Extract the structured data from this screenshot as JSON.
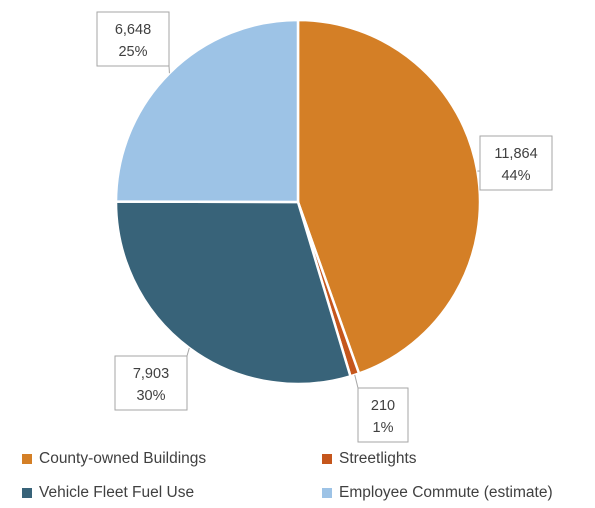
{
  "chart_data": {
    "type": "pie",
    "title": "",
    "categories": [
      "County-owned Buildings",
      "Streetlights",
      "Vehicle Fleet Fuel Use",
      "Employee Commute (estimate)"
    ],
    "values": [
      11864,
      210,
      7903,
      6648
    ],
    "percent_labels": [
      "44%",
      "1%",
      "30%",
      "25%"
    ],
    "value_labels": [
      "11,864",
      "210",
      "7,903",
      "6,648"
    ],
    "colors": [
      "#D47F26",
      "#C5561C",
      "#386379",
      "#9DC3E6"
    ],
    "start_angle_deg": 0,
    "direction": "clockwise",
    "legend_position": "bottom",
    "data_labels": "callouts"
  }
}
